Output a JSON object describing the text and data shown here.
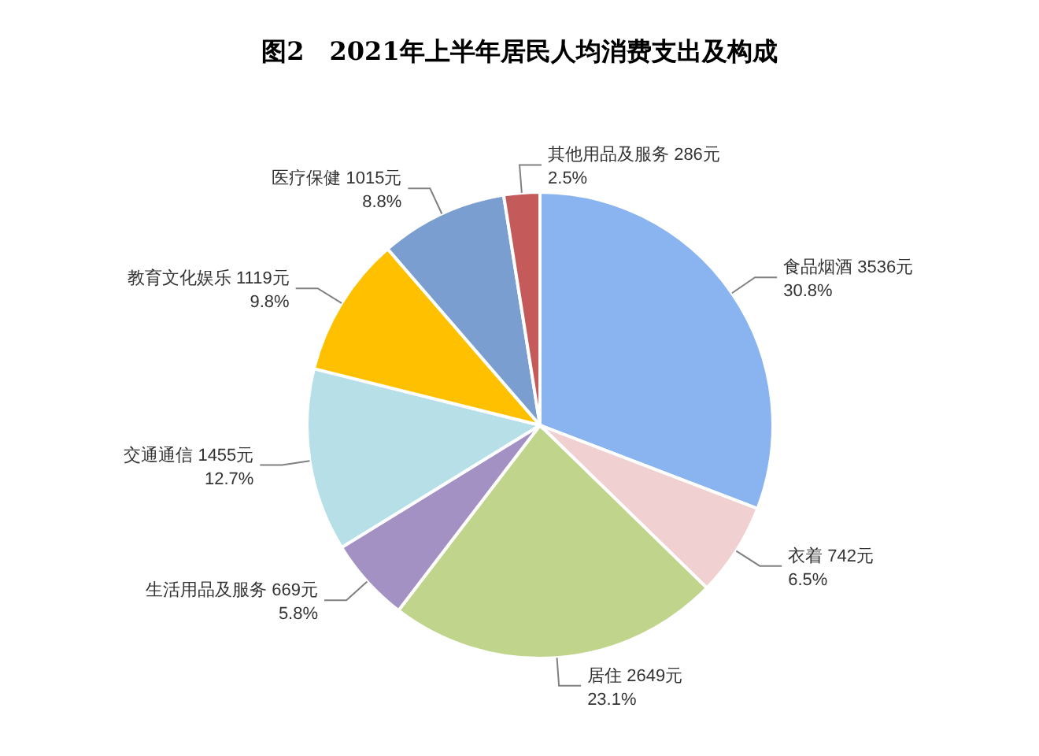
{
  "chart_data": {
    "type": "pie",
    "title": "图2　2021年上半年居民人均消费支出及构成",
    "categories": [
      "食品烟酒",
      "衣着",
      "居住",
      "生活用品及服务",
      "交通通信",
      "教育文化娱乐",
      "医疗保健",
      "其他用品及服务"
    ],
    "values": [
      3536,
      742,
      2649,
      669,
      1455,
      1119,
      1015,
      286
    ],
    "value_labels": [
      "3536元\n30.8%",
      "742元\n6.5%",
      "2649元\n23.1%",
      "669元\n5.8%",
      "1455元\n12.7%",
      "1119元\n9.8%",
      "1015元\n8.8%",
      "286元\n2.5%"
    ],
    "colors": [
      "#8ab4f0",
      "#f0d0d0",
      "#c0d48c",
      "#a391c4",
      "#b6dfe8",
      "#ffc000",
      "#7a9ed0",
      "#c55a5a"
    ]
  }
}
